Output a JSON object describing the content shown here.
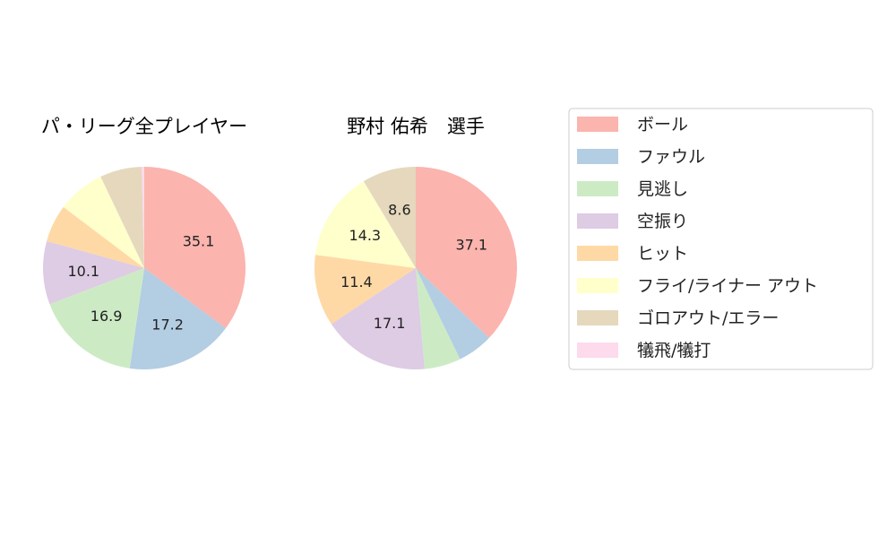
{
  "chart_data": [
    {
      "type": "pie",
      "title": "パ・リーグ全プレイヤー",
      "categories": [
        "ボール",
        "ファウル",
        "見逃し",
        "空振り",
        "ヒット",
        "フライ/ライナー アウト",
        "ゴロアウト/エラー",
        "犠飛/犠打"
      ],
      "values": [
        35.1,
        17.2,
        16.9,
        10.1,
        6.0,
        7.6,
        6.7,
        0.4
      ],
      "data_labels": [
        "35.1",
        "17.2",
        "16.9",
        "10.1",
        "",
        "",
        "",
        ""
      ],
      "start_angle_deg": 90,
      "direction": "clockwise"
    },
    {
      "type": "pie",
      "title": "野村 佑希　選手",
      "categories": [
        "ボール",
        "ファウル",
        "見逃し",
        "空振り",
        "ヒット",
        "フライ/ライナー アウト",
        "ゴロアウト/エラー",
        "犠飛/犠打"
      ],
      "values": [
        37.1,
        5.7,
        5.8,
        17.1,
        11.4,
        14.3,
        8.6,
        0.0
      ],
      "data_labels": [
        "37.1",
        "",
        "",
        "17.1",
        "11.4",
        "14.3",
        "8.6",
        ""
      ],
      "start_angle_deg": 90,
      "direction": "clockwise"
    }
  ],
  "legend": {
    "placement": "right",
    "items": [
      {
        "label": "ボール",
        "color": "#fbb4ae"
      },
      {
        "label": "ファウル",
        "color": "#b3cde3"
      },
      {
        "label": "見逃し",
        "color": "#ccebc5"
      },
      {
        "label": "空振り",
        "color": "#decbe4"
      },
      {
        "label": "ヒット",
        "color": "#fed9a6"
      },
      {
        "label": "フライ/ライナー アウト",
        "color": "#ffffcc"
      },
      {
        "label": "ゴロアウト/エラー",
        "color": "#e5d8bd"
      },
      {
        "label": "犠飛/犠打",
        "color": "#fddaec"
      }
    ]
  }
}
